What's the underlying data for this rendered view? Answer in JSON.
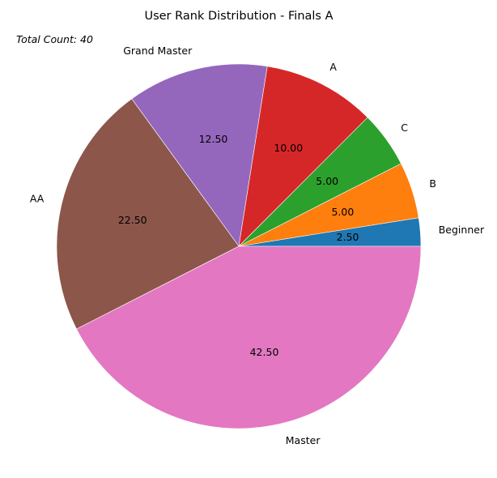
{
  "chart_data": {
    "type": "pie",
    "title": "User Rank Distribution - Finals A",
    "annotation": "Total Count: 40",
    "categories": [
      "Beginner",
      "B",
      "C",
      "A",
      "Grand Master",
      "AA",
      "Master"
    ],
    "values": [
      2.5,
      5.0,
      5.0,
      10.0,
      12.5,
      22.5,
      42.5
    ],
    "value_labels": [
      "2.50",
      "5.00",
      "5.00",
      "10.00",
      "12.50",
      "22.50",
      "42.50"
    ],
    "colors": [
      "#1f77b4",
      "#ff7f0e",
      "#2ca02c",
      "#d62728",
      "#9467bd",
      "#8c564b",
      "#e377c2"
    ],
    "start_angle_deg": 0,
    "direction": "counterclockwise"
  }
}
